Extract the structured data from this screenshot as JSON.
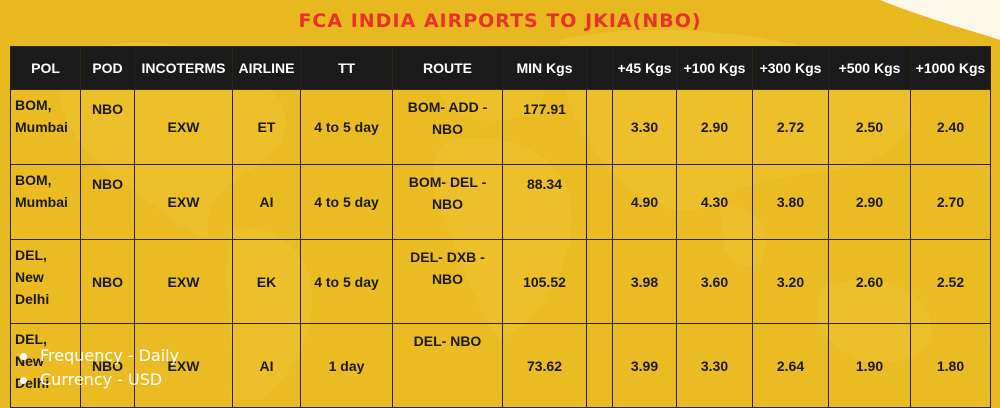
{
  "title": "FCA INDIA AIRPORTS TO JKIA(NBO)",
  "table": {
    "headers": [
      "POL",
      "POD",
      "INCOTERMS",
      "AIRLINE",
      "TT",
      "ROUTE",
      "MIN Kgs",
      "",
      "+45 Kgs",
      "+100 Kgs",
      "+300 Kgs",
      "+500 Kgs",
      "+1000 Kgs"
    ],
    "rows": [
      {
        "pol": "BOM,\nMumbai",
        "pod": "NBO",
        "incoterms": "EXW",
        "airline": "ET",
        "tt": "4 to 5 day",
        "route": "BOM- ADD -\nNBO",
        "min": "177.91",
        "blank": "",
        "k45": "3.30",
        "k100": "2.90",
        "k300": "2.72",
        "k500": "2.50",
        "k1000": "2.40"
      },
      {
        "pol": "BOM,\nMumbai",
        "pod": "NBO",
        "incoterms": "EXW",
        "airline": "AI",
        "tt": "4 to 5 day",
        "route": "BOM- DEL -\nNBO",
        "min": "88.34",
        "blank": "",
        "k45": "4.90",
        "k100": "4.30",
        "k300": "3.80",
        "k500": "2.90",
        "k1000": "2.70"
      },
      {
        "pol": "DEL,\nNew\nDelhi",
        "pod": "NBO",
        "incoterms": "EXW",
        "airline": "EK",
        "tt": "4 to 5 day",
        "route": "DEL- DXB -\nNBO",
        "min": "105.52",
        "blank": "",
        "k45": "3.98",
        "k100": "3.60",
        "k300": "3.20",
        "k500": "2.60",
        "k1000": "2.52"
      },
      {
        "pol": "DEL,\nNew\nDelhi",
        "pod": "NBO",
        "incoterms": "EXW",
        "airline": "AI",
        "tt": "1 day",
        "route": "DEL- NBO",
        "min": "73.62",
        "blank": "",
        "k45": "3.99",
        "k100": "3.30",
        "k300": "2.64",
        "k500": "1.90",
        "k1000": "1.80"
      }
    ]
  },
  "notes": [
    "Frequency - Daily",
    "Currency - USD"
  ],
  "colors": {
    "background": "#e8b820",
    "title": "#e8322a",
    "header_bg": "#1b1b1b",
    "notes_text": "#ffffff"
  }
}
